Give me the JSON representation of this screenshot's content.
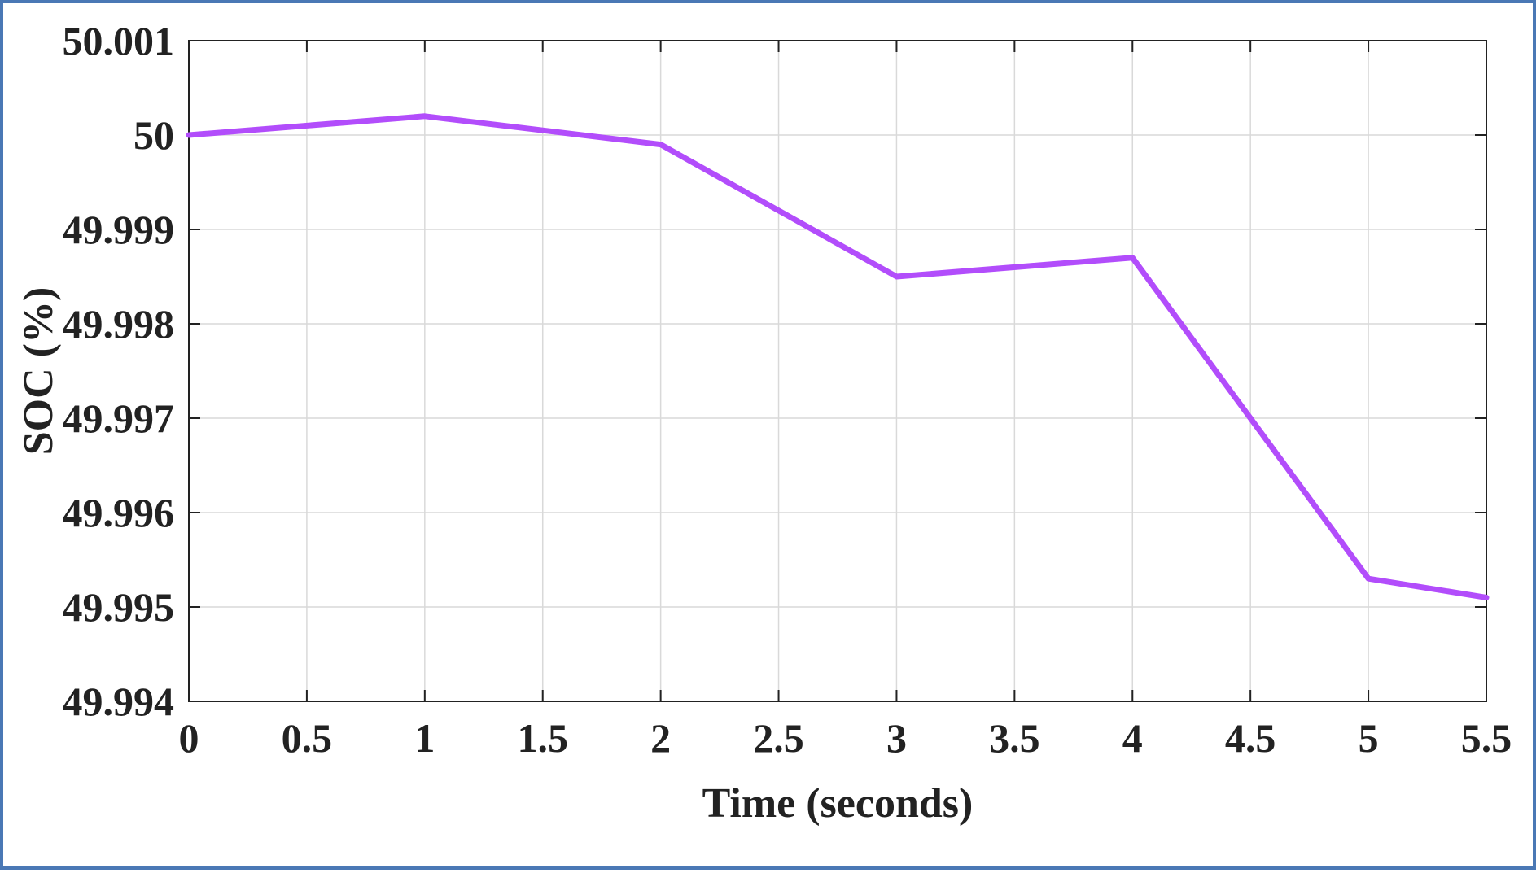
{
  "chart_data": {
    "type": "line",
    "xlabel": "Time (seconds)",
    "ylabel": "SOC (%)",
    "xlim": [
      0,
      5.5
    ],
    "ylim": [
      49.994,
      50.001
    ],
    "x_ticks": [
      "0",
      "0.5",
      "1",
      "1.5",
      "2",
      "2.5",
      "3",
      "3.5",
      "4",
      "4.5",
      "5",
      "5.5"
    ],
    "y_ticks": [
      "49.994",
      "49.995",
      "49.996",
      "49.997",
      "49.998",
      "49.999",
      "50",
      "50.001"
    ],
    "grid": true,
    "series": [
      {
        "color": "#b24dfb",
        "x": [
          0,
          1,
          2,
          3,
          4,
          5,
          5.5
        ],
        "y": [
          50.0,
          50.0002,
          49.9999,
          49.9985,
          49.9987,
          49.9953,
          49.9951
        ]
      }
    ]
  },
  "colors": {
    "frame_border": "#4a78b5",
    "axis": "#222222",
    "grid": "#d9d9d9"
  }
}
